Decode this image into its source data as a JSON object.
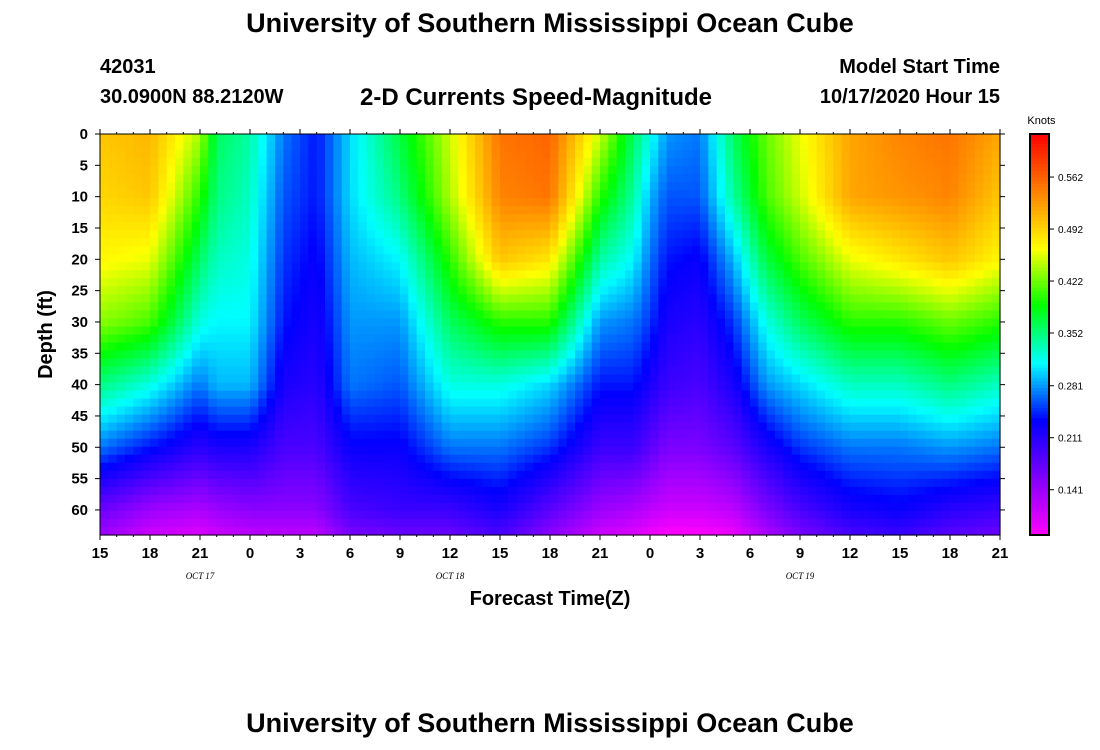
{
  "header": {
    "title": "University of Southern Mississippi Ocean Cube",
    "station_id": "42031",
    "coordinates": "30.0900N 88.2120W",
    "subtitle": "2-D Currents Speed-Magnitude",
    "model_start_label": "Model Start Time",
    "model_start_value": "10/17/2020 Hour 15"
  },
  "footer": {
    "title": "University of Southern Mississippi Ocean Cube"
  },
  "chart_data": {
    "type": "heatmap",
    "title": "2-D Currents Speed-Magnitude",
    "xlabel": "Forecast Time(Z)",
    "ylabel": "Depth (ft)",
    "x_hours_since_start": [
      0,
      3,
      6,
      9,
      12,
      15,
      18,
      21,
      24,
      27,
      30,
      33,
      36,
      39,
      42,
      45,
      48,
      51,
      54
    ],
    "x_tick_labels": [
      "15",
      "18",
      "21",
      "0",
      "3",
      "6",
      "9",
      "12",
      "15",
      "18",
      "21",
      "0",
      "3",
      "6",
      "9",
      "12",
      "15",
      "18",
      "21"
    ],
    "date_labels": [
      {
        "hour": 6,
        "label": "OCT 17"
      },
      {
        "hour": 21,
        "label": "OCT 18"
      },
      {
        "hour": 42,
        "label": "OCT 19"
      }
    ],
    "y_ticks": [
      0,
      5,
      10,
      15,
      20,
      25,
      30,
      35,
      40,
      45,
      50,
      55,
      60
    ],
    "ylim": [
      0,
      64
    ],
    "xlim": [
      0,
      54
    ],
    "colorbar": {
      "unit_label": "Knots",
      "range": [
        0.08,
        0.62
      ],
      "tick_values": [
        0.141,
        0.211,
        0.281,
        0.352,
        0.422,
        0.492,
        0.562
      ],
      "tick_labels": [
        "0.141",
        "0.211",
        "0.281",
        "0.352",
        "0.422",
        "0.492",
        "0.562"
      ],
      "colors": [
        "#ff00ff",
        "#8000ff",
        "#0000ff",
        "#00ffff",
        "#00ff00",
        "#ffff00",
        "#ff8000",
        "#ff0000"
      ]
    },
    "depth_profile_keys": [
      {
        "hour": 0,
        "surface": 0.5,
        "d10": 0.49,
        "d20": 0.47,
        "d30": 0.43,
        "d40": 0.35,
        "d50": 0.27,
        "d60": 0.17
      },
      {
        "hour": 3,
        "surface": 0.51,
        "d10": 0.5,
        "d20": 0.46,
        "d30": 0.41,
        "d40": 0.32,
        "d50": 0.24,
        "d60": 0.14
      },
      {
        "hour": 6,
        "surface": 0.44,
        "d10": 0.4,
        "d20": 0.36,
        "d30": 0.32,
        "d40": 0.27,
        "d50": 0.21,
        "d60": 0.13
      },
      {
        "hour": 7,
        "surface": 0.36,
        "d10": 0.35,
        "d20": 0.33,
        "d30": 0.31,
        "d40": 0.29,
        "d50": 0.22,
        "d60": 0.14
      },
      {
        "hour": 9,
        "surface": 0.34,
        "d10": 0.33,
        "d20": 0.32,
        "d30": 0.31,
        "d40": 0.29,
        "d50": 0.22,
        "d60": 0.15
      },
      {
        "hour": 11,
        "surface": 0.27,
        "d10": 0.26,
        "d20": 0.25,
        "d30": 0.24,
        "d40": 0.22,
        "d50": 0.19,
        "d60": 0.15
      },
      {
        "hour": 13,
        "surface": 0.24,
        "d10": 0.24,
        "d20": 0.23,
        "d30": 0.22,
        "d40": 0.21,
        "d50": 0.19,
        "d60": 0.15
      },
      {
        "hour": 15,
        "surface": 0.3,
        "d10": 0.3,
        "d20": 0.29,
        "d30": 0.28,
        "d40": 0.27,
        "d50": 0.23,
        "d60": 0.19
      },
      {
        "hour": 18,
        "surface": 0.37,
        "d10": 0.35,
        "d20": 0.31,
        "d30": 0.28,
        "d40": 0.26,
        "d50": 0.23,
        "d60": 0.2
      },
      {
        "hour": 21,
        "surface": 0.45,
        "d10": 0.44,
        "d20": 0.4,
        "d30": 0.36,
        "d40": 0.32,
        "d50": 0.27,
        "d60": 0.2
      },
      {
        "hour": 24,
        "surface": 0.55,
        "d10": 0.54,
        "d20": 0.5,
        "d30": 0.4,
        "d40": 0.32,
        "d50": 0.27,
        "d60": 0.22
      },
      {
        "hour": 27,
        "surface": 0.56,
        "d10": 0.55,
        "d20": 0.48,
        "d30": 0.4,
        "d40": 0.3,
        "d50": 0.25,
        "d60": 0.18
      },
      {
        "hour": 30,
        "surface": 0.45,
        "d10": 0.4,
        "d20": 0.34,
        "d30": 0.28,
        "d40": 0.24,
        "d50": 0.2,
        "d60": 0.14
      },
      {
        "hour": 32,
        "surface": 0.36,
        "d10": 0.34,
        "d20": 0.31,
        "d30": 0.27,
        "d40": 0.24,
        "d50": 0.2,
        "d60": 0.13
      },
      {
        "hour": 33,
        "surface": 0.32,
        "d10": 0.29,
        "d20": 0.27,
        "d30": 0.25,
        "d40": 0.22,
        "d50": 0.18,
        "d60": 0.12
      },
      {
        "hour": 34,
        "surface": 0.28,
        "d10": 0.26,
        "d20": 0.24,
        "d30": 0.22,
        "d40": 0.2,
        "d50": 0.16,
        "d60": 0.11
      },
      {
        "hour": 36,
        "surface": 0.27,
        "d10": 0.26,
        "d20": 0.23,
        "d30": 0.21,
        "d40": 0.19,
        "d50": 0.16,
        "d60": 0.11
      },
      {
        "hour": 38,
        "surface": 0.36,
        "d10": 0.34,
        "d20": 0.29,
        "d30": 0.25,
        "d40": 0.22,
        "d50": 0.18,
        "d60": 0.12
      },
      {
        "hour": 40,
        "surface": 0.42,
        "d10": 0.41,
        "d20": 0.37,
        "d30": 0.32,
        "d40": 0.28,
        "d50": 0.22,
        "d60": 0.16
      },
      {
        "hour": 42,
        "surface": 0.46,
        "d10": 0.45,
        "d20": 0.41,
        "d30": 0.36,
        "d40": 0.3,
        "d50": 0.25,
        "d60": 0.19
      },
      {
        "hour": 45,
        "surface": 0.52,
        "d10": 0.52,
        "d20": 0.46,
        "d30": 0.4,
        "d40": 0.33,
        "d50": 0.27,
        "d60": 0.22
      },
      {
        "hour": 48,
        "surface": 0.54,
        "d10": 0.53,
        "d20": 0.48,
        "d30": 0.4,
        "d40": 0.33,
        "d50": 0.27,
        "d60": 0.23
      },
      {
        "hour": 51,
        "surface": 0.55,
        "d10": 0.54,
        "d20": 0.5,
        "d30": 0.42,
        "d40": 0.35,
        "d50": 0.28,
        "d60": 0.21
      },
      {
        "hour": 54,
        "surface": 0.52,
        "d10": 0.5,
        "d20": 0.47,
        "d30": 0.4,
        "d40": 0.33,
        "d50": 0.27,
        "d60": 0.2
      }
    ]
  }
}
